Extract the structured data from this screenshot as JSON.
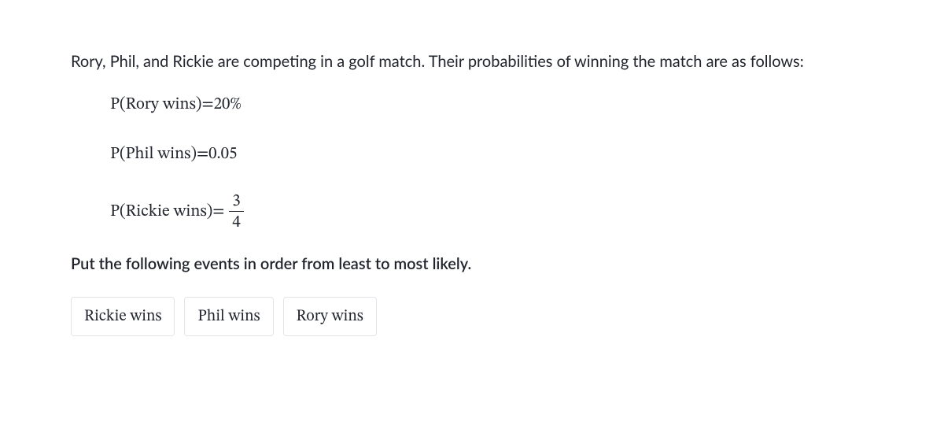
{
  "intro": "Rory, Phil, and Rickie are competing in a golf match. Their probabilities of winning the match are as follows:",
  "equations": {
    "rory": {
      "lhs": "P(Rory wins)",
      "eq": " = ",
      "rhs": "20%"
    },
    "phil": {
      "lhs": "P(Phil wins)",
      "eq": " = ",
      "rhs": "0.05"
    },
    "rickie": {
      "lhs": "P(Rickie wins)",
      "eq": " = ",
      "num": "3",
      "den": "4"
    }
  },
  "instruction": "Put the following events in order from least to most likely.",
  "cards": [
    {
      "label": "Rickie wins"
    },
    {
      "label": "Phil wins"
    },
    {
      "label": "Rory wins"
    }
  ],
  "colors": {
    "text": "#21242c",
    "card_border": "#e2e4e8",
    "background": "#ffffff"
  }
}
